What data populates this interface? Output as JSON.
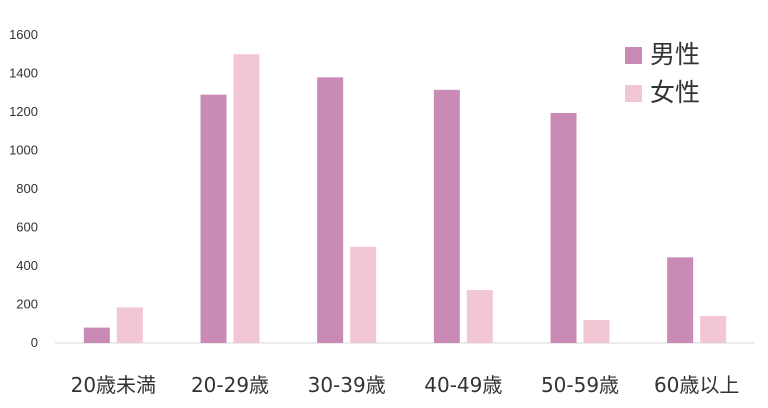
{
  "chart_data": {
    "type": "bar",
    "categories": [
      "20歳未満",
      "20-29歳",
      "30-39歳",
      "40-49歳",
      "50-59歳",
      "60歳以上"
    ],
    "series": [
      {
        "name": "男性",
        "color": "#c98bb6",
        "values": [
          80,
          1290,
          1380,
          1315,
          1195,
          445
        ]
      },
      {
        "name": "女性",
        "color": "#f3c6d3",
        "values": [
          185,
          1500,
          500,
          275,
          120,
          140
        ]
      }
    ],
    "yticks": [
      "0",
      "200",
      "400",
      "600",
      "800",
      "1000",
      "1200",
      "1400",
      "1600"
    ],
    "ylim": [
      0,
      1600
    ],
    "grid": false,
    "legend_position": "top-right",
    "title": "",
    "xlabel": "",
    "ylabel": ""
  }
}
